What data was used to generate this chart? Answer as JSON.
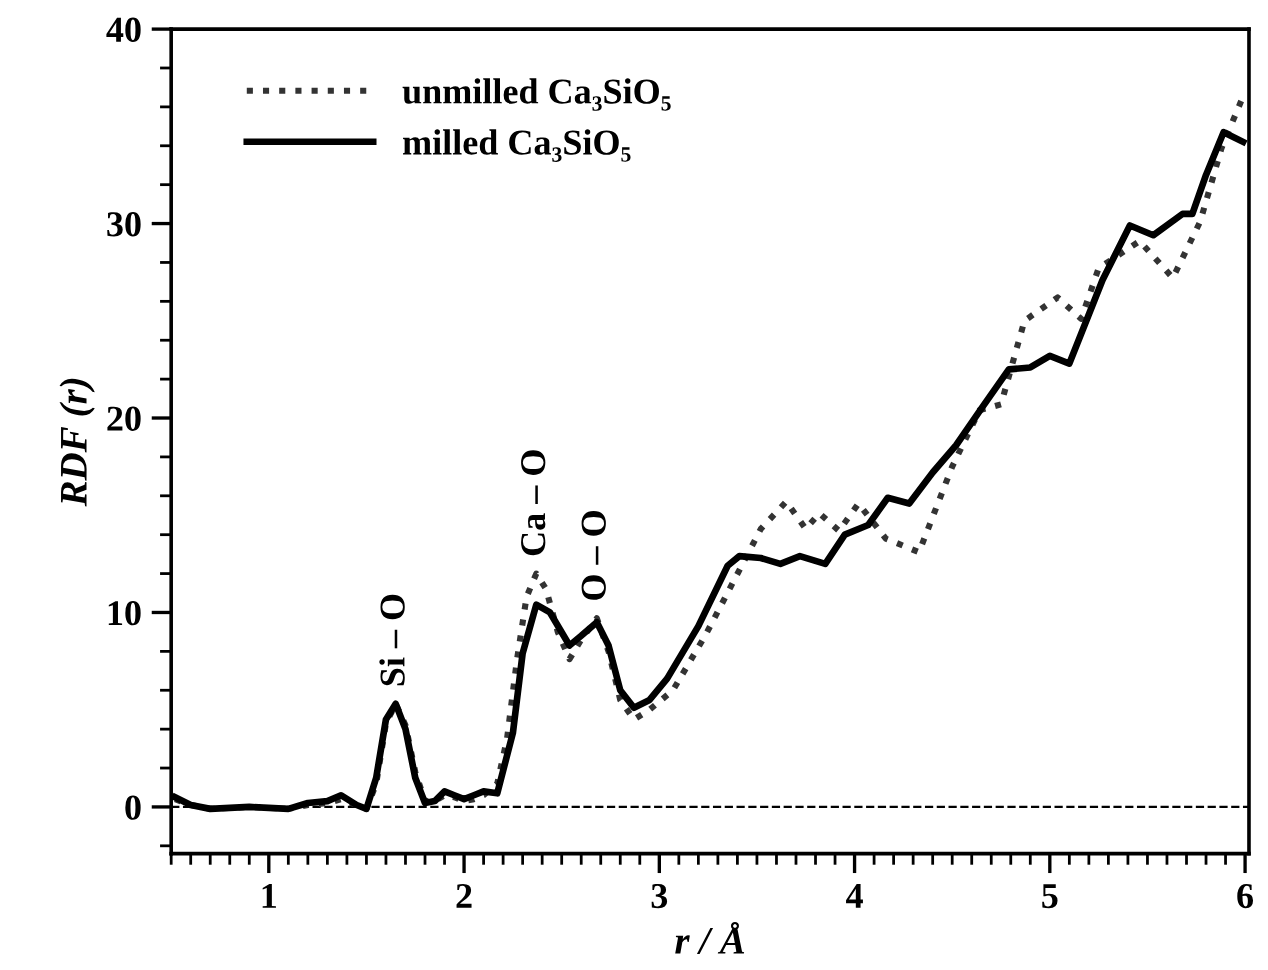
{
  "chart_data": {
    "type": "line",
    "xlabel": "r / Å",
    "ylabel": "RDF (r)",
    "xlim": [
      0.5,
      6.02
    ],
    "ylim": [
      -2.4,
      40
    ],
    "xticks": [
      1,
      2,
      3,
      4,
      5,
      6
    ],
    "yticks": [
      0,
      10,
      20,
      30,
      40
    ],
    "grid": false,
    "legend": "top left",
    "marker": "none",
    "ref_lines": [
      {
        "axis": "y",
        "value": 0,
        "line_style": "dashed",
        "color": "#000000"
      }
    ],
    "annotations": [
      {
        "text": "Si – O",
        "x": 1.65,
        "y": 5.3
      },
      {
        "text": "Ca – O",
        "x": 2.37,
        "y": 12.0
      },
      {
        "text": "O – O",
        "x": 2.68,
        "y": 9.7
      }
    ],
    "series": [
      {
        "name": "unmilled Ca₃SiO₅",
        "color": "#333333",
        "line_style": "dotted",
        "x": [
          0.52,
          0.6,
          0.7,
          0.9,
          1.1,
          1.2,
          1.3,
          1.37,
          1.45,
          1.5,
          1.55,
          1.6,
          1.65,
          1.7,
          1.75,
          1.8,
          1.85,
          1.9,
          1.95,
          2.0,
          2.05,
          2.1,
          2.17,
          2.22,
          2.27,
          2.32,
          2.37,
          2.42,
          2.48,
          2.54,
          2.6,
          2.68,
          2.74,
          2.8,
          2.87,
          2.95,
          3.07,
          3.24,
          3.38,
          3.52,
          3.65,
          3.75,
          3.82,
          3.92,
          4.02,
          4.16,
          4.33,
          4.5,
          4.64,
          4.75,
          4.87,
          5.04,
          5.16,
          5.25,
          5.46,
          5.63,
          5.77,
          5.88,
          5.98
        ],
        "values": [
          0.4,
          0.1,
          -0.1,
          0,
          -0.1,
          0.1,
          0.2,
          0.4,
          0.1,
          -0.1,
          1.2,
          4.3,
          5.3,
          4.2,
          1.8,
          0.3,
          0.3,
          0.6,
          0.5,
          0.3,
          0.4,
          0.6,
          1.2,
          3.5,
          7.5,
          10.8,
          12.0,
          11.2,
          9.0,
          7.6,
          8.6,
          9.7,
          8.0,
          5.5,
          4.5,
          5.0,
          6.0,
          8.9,
          11.6,
          14.3,
          15.7,
          14.3,
          15.1,
          14.2,
          15.6,
          13.8,
          13.1,
          17.5,
          20.4,
          20.7,
          25.0,
          26.2,
          25.1,
          27.7,
          29.1,
          27.2,
          30.1,
          33.9,
          36.3
        ]
      },
      {
        "name": "milled Ca₃SiO₅",
        "color": "#000000",
        "line_style": "solid",
        "x": [
          0.52,
          0.6,
          0.7,
          0.9,
          1.1,
          1.2,
          1.3,
          1.37,
          1.45,
          1.5,
          1.55,
          1.6,
          1.65,
          1.7,
          1.75,
          1.8,
          1.85,
          1.9,
          1.95,
          2.0,
          2.05,
          2.1,
          2.17,
          2.25,
          2.3,
          2.37,
          2.44,
          2.54,
          2.6,
          2.68,
          2.74,
          2.8,
          2.87,
          2.95,
          3.04,
          3.2,
          3.35,
          3.41,
          3.52,
          3.62,
          3.72,
          3.85,
          3.95,
          4.07,
          4.17,
          4.28,
          4.4,
          4.52,
          4.65,
          4.79,
          4.9,
          5.0,
          5.1,
          5.27,
          5.41,
          5.53,
          5.68,
          5.73,
          5.8,
          5.89,
          5.99
        ],
        "values": [
          0.5,
          0.1,
          -0.1,
          0,
          -0.1,
          0.2,
          0.3,
          0.6,
          0.1,
          -0.1,
          1.5,
          4.5,
          5.3,
          4.0,
          1.5,
          0.2,
          0.3,
          0.8,
          0.6,
          0.4,
          0.6,
          0.8,
          0.7,
          3.8,
          7.9,
          10.4,
          10.0,
          8.3,
          8.8,
          9.5,
          8.3,
          6.0,
          5.1,
          5.5,
          6.6,
          9.3,
          12.4,
          12.9,
          12.8,
          12.5,
          12.9,
          12.5,
          14.0,
          14.5,
          15.9,
          15.6,
          17.2,
          18.6,
          20.5,
          22.5,
          22.6,
          23.2,
          22.8,
          27.1,
          29.9,
          29.4,
          30.5,
          30.5,
          32.5,
          34.7,
          34.2
        ]
      }
    ]
  }
}
